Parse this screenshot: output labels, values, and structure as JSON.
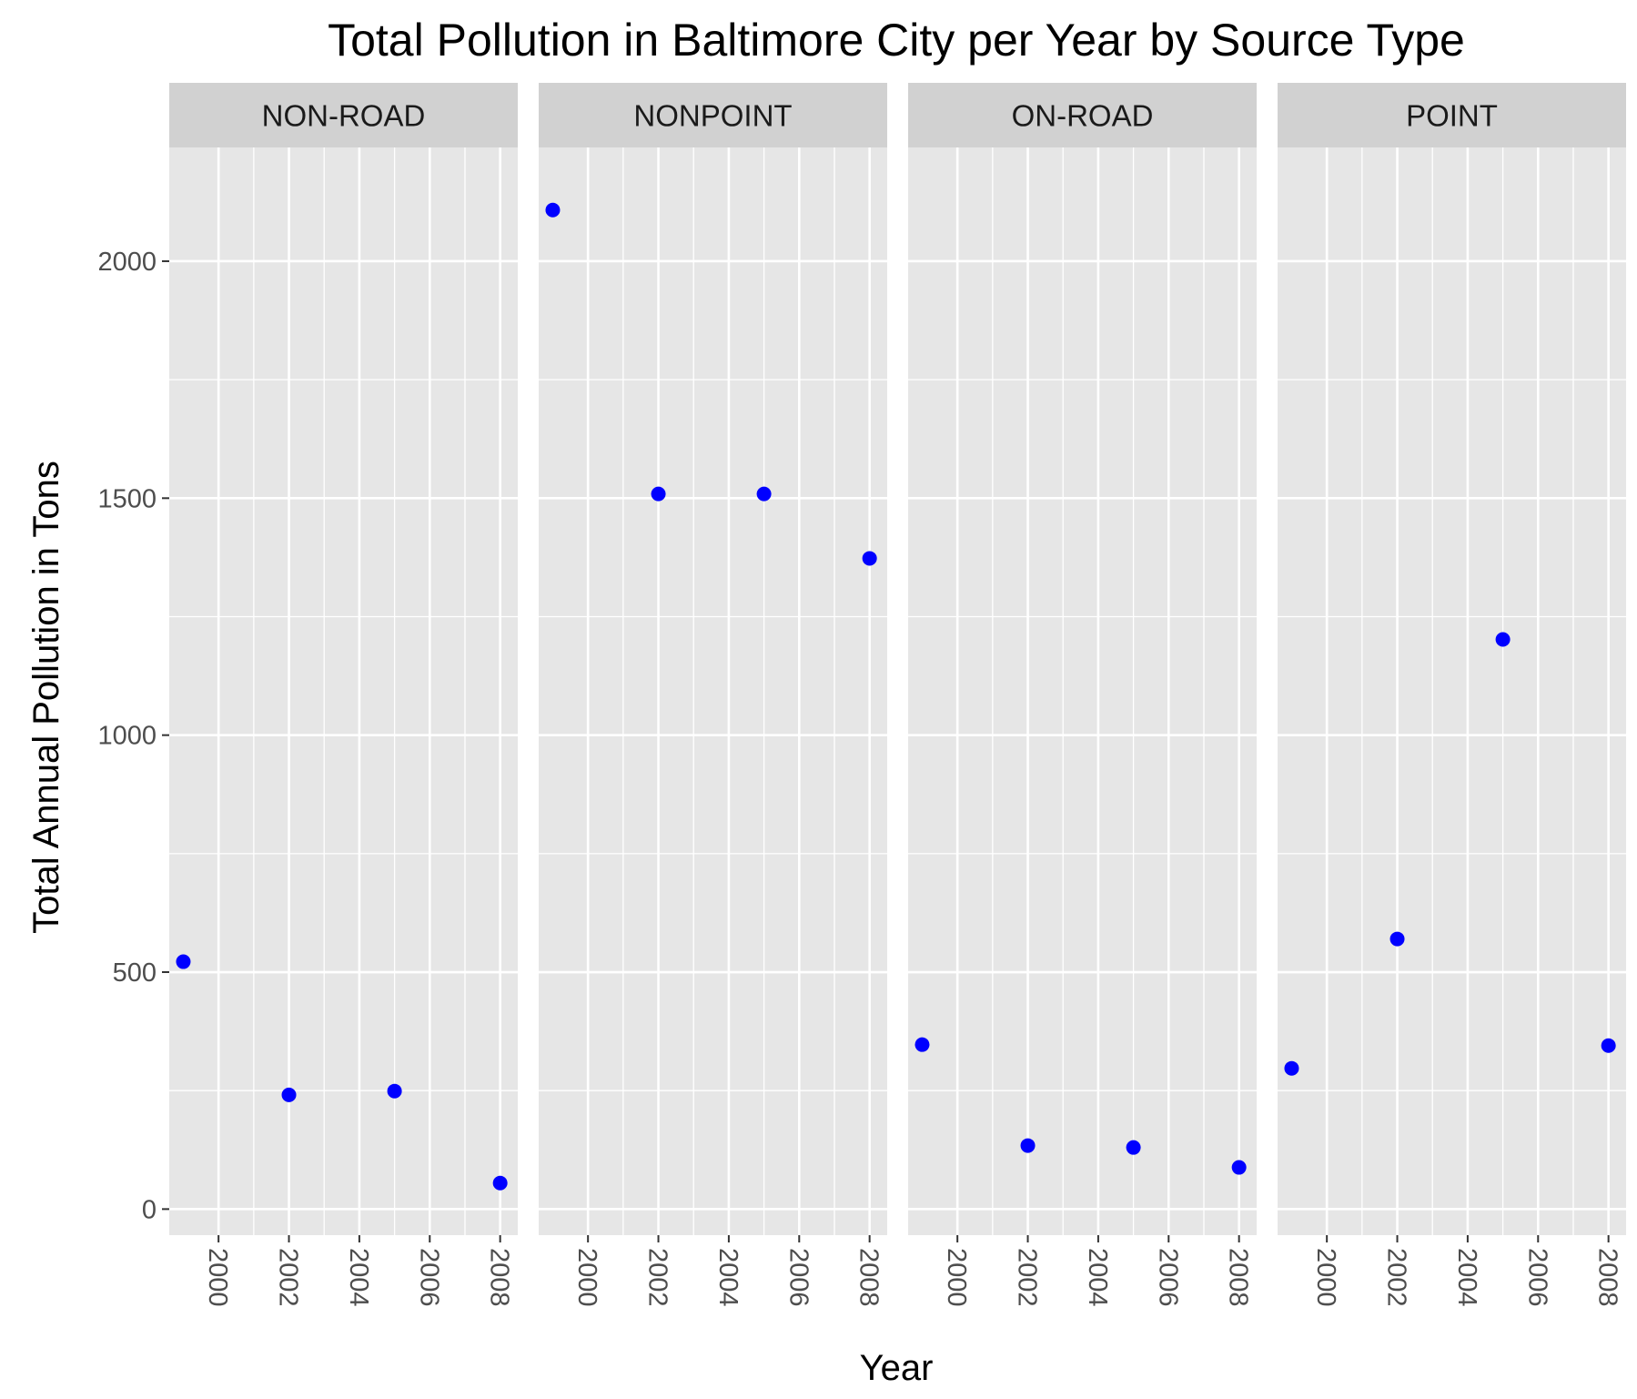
{
  "chart_data": {
    "type": "scatter",
    "title": "Total Pollution in Baltimore City per Year by Source Type",
    "xlabel": "Year",
    "ylabel": "Total Annual Pollution in Tons",
    "x_ticks": [
      2000,
      2002,
      2004,
      2006,
      2008
    ],
    "y_ticks": [
      0,
      500,
      1000,
      1500,
      2000
    ],
    "xlim": [
      1998.6,
      2008.5
    ],
    "ylim": [
      -55,
      2240
    ],
    "grid": true,
    "point_color": "#0000ff",
    "panel_background": "#e6e6e6",
    "strip_background": "#d1d1d1",
    "facets": [
      {
        "label": "NON-ROAD",
        "x": [
          1999,
          2002,
          2005,
          2008
        ],
        "y": [
          522,
          241,
          249,
          55
        ]
      },
      {
        "label": "NONPOINT",
        "x": [
          1999,
          2002,
          2005,
          2008
        ],
        "y": [
          2108,
          1509,
          1509,
          1373
        ]
      },
      {
        "label": "ON-ROAD",
        "x": [
          1999,
          2002,
          2005,
          2008
        ],
        "y": [
          347,
          134,
          130,
          88
        ]
      },
      {
        "label": "POINT",
        "x": [
          1999,
          2002,
          2005,
          2008
        ],
        "y": [
          297,
          570,
          1202,
          345
        ]
      }
    ]
  }
}
